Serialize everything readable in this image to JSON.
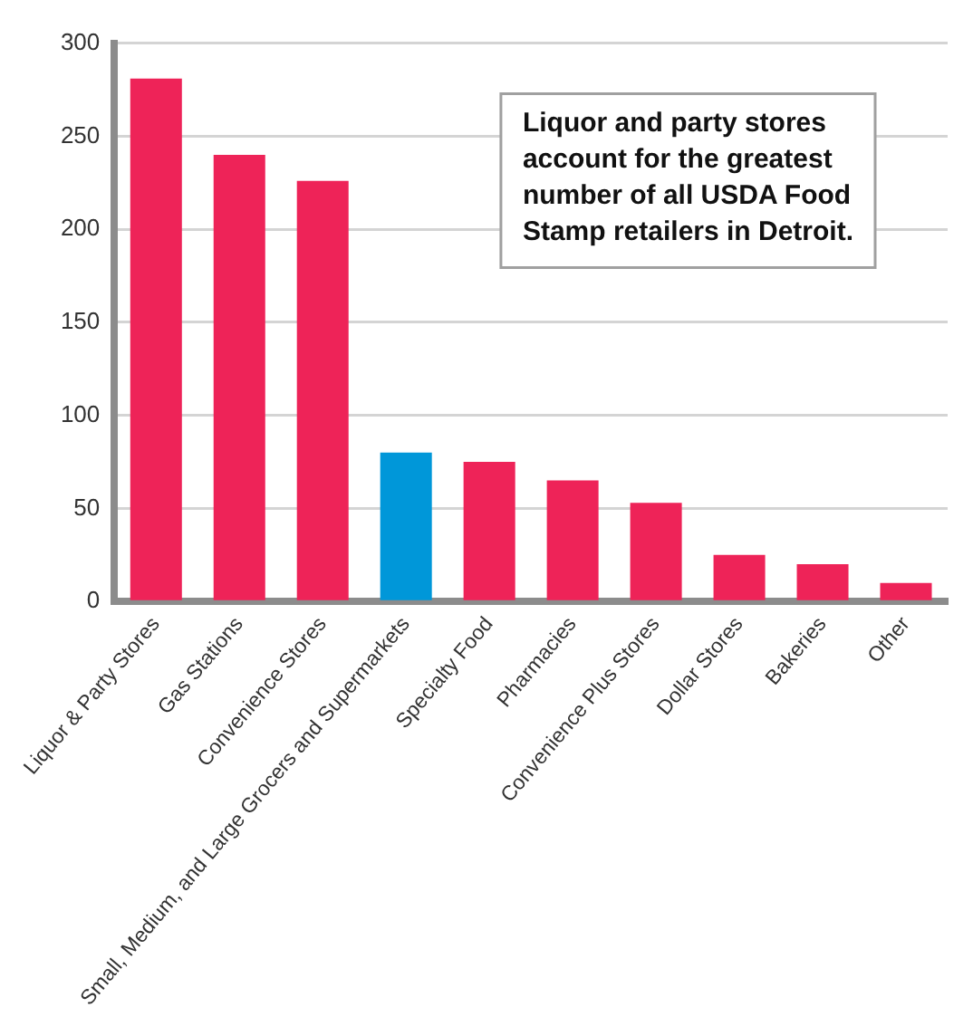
{
  "chart_data": {
    "type": "bar",
    "categories": [
      "Liquor & Party Stores",
      "Gas Stations",
      "Convenience Stores",
      "Small, Medium, and Large Grocers and Supermarkets",
      "Specialty Food",
      "Pharmacies",
      "Convenience Plus Stores",
      "Dollar Stores",
      "Bakeries",
      "Other"
    ],
    "values": [
      281,
      240,
      226,
      80,
      75,
      65,
      53,
      25,
      20,
      10
    ],
    "colors": [
      "#ee2358",
      "#ee2358",
      "#ee2358",
      "#0097d9",
      "#ee2358",
      "#ee2358",
      "#ee2358",
      "#ee2358",
      "#ee2358",
      "#ee2358"
    ],
    "ylim": [
      0,
      300
    ],
    "yticks": [
      0,
      50,
      100,
      150,
      200,
      250,
      300
    ],
    "grid": "y",
    "legend": false,
    "annotations": [
      "Liquor and party stores account for the greatest number of all USDA Food Stamp retailers in Detroit."
    ]
  }
}
